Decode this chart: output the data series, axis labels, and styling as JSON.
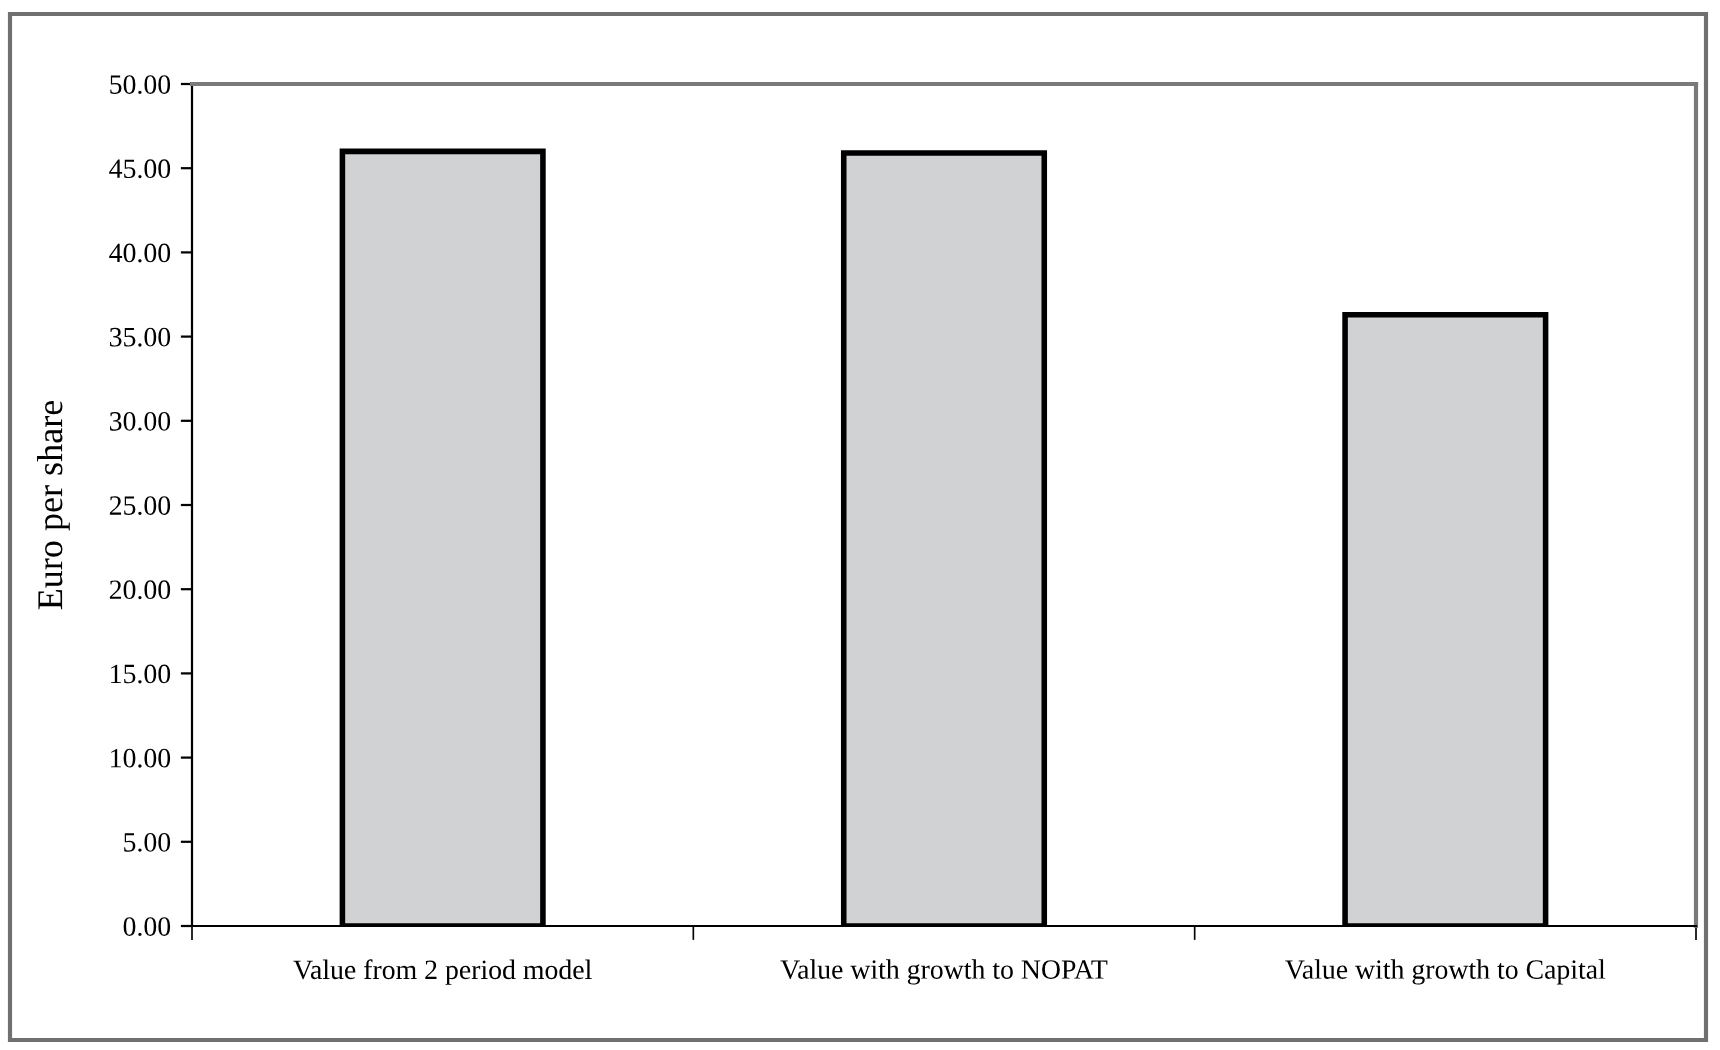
{
  "chart_data": {
    "type": "bar",
    "ylabel": "Euro per share",
    "categories": [
      "Value from 2 period model",
      "Value with growth to NOPAT",
      "Value with growth to Capital"
    ],
    "values": [
      46.0,
      45.9,
      36.3
    ],
    "color": "#d1d2d4",
    "ylim": [
      0,
      50
    ],
    "yticks": [
      {
        "value": 0,
        "label": "0.00"
      },
      {
        "value": 5,
        "label": "5.00"
      },
      {
        "value": 10,
        "label": "10.00"
      },
      {
        "value": 15,
        "label": "15.00"
      },
      {
        "value": 20,
        "label": "20.00"
      },
      {
        "value": 25,
        "label": "25.00"
      },
      {
        "value": 30,
        "label": "30.00"
      },
      {
        "value": 35,
        "label": "35.00"
      },
      {
        "value": 40,
        "label": "40.00"
      },
      {
        "value": 45,
        "label": "45.00"
      },
      {
        "value": 50,
        "label": "50.00"
      }
    ],
    "grid": false,
    "legend": false
  }
}
